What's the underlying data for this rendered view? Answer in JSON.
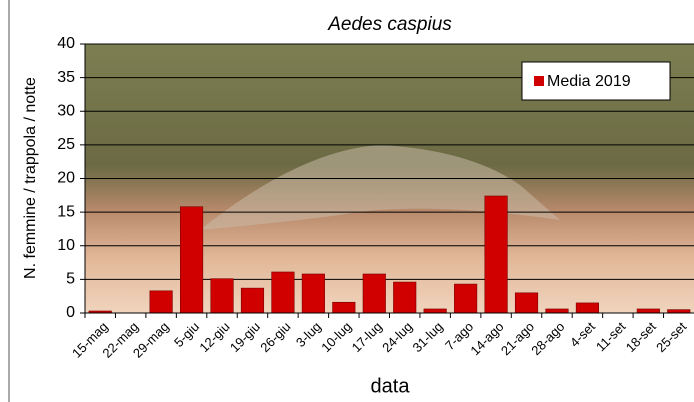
{
  "chart_data": {
    "type": "bar",
    "title": "Aedes caspius",
    "x_label": "data",
    "y_label": "N. femmine / trappola / notte",
    "categories": [
      "15-mag",
      "22-mag",
      "29-mag",
      "5-giu",
      "12-giu",
      "19-giu",
      "26-giu",
      "3-lug",
      "10-lug",
      "17-lug",
      "24-lug",
      "31-lug",
      "7-ago",
      "14-ago",
      "21-ago",
      "28-ago",
      "4-set",
      "11-set",
      "18-set",
      "25-set"
    ],
    "series": [
      {
        "name": "Media 2019",
        "color": "#d00000",
        "values": [
          0.3,
          0,
          3.3,
          15.8,
          5.1,
          3.7,
          6.1,
          5.8,
          1.6,
          5.8,
          4.6,
          0.6,
          4.3,
          17.4,
          3.0,
          0.6,
          1.5,
          0,
          0.6,
          0.5
        ]
      }
    ],
    "ylim": [
      0,
      40
    ],
    "yticks": [
      0,
      5,
      10,
      15,
      20,
      25,
      30,
      35,
      40
    ],
    "grid": true,
    "legend": "upper right"
  }
}
